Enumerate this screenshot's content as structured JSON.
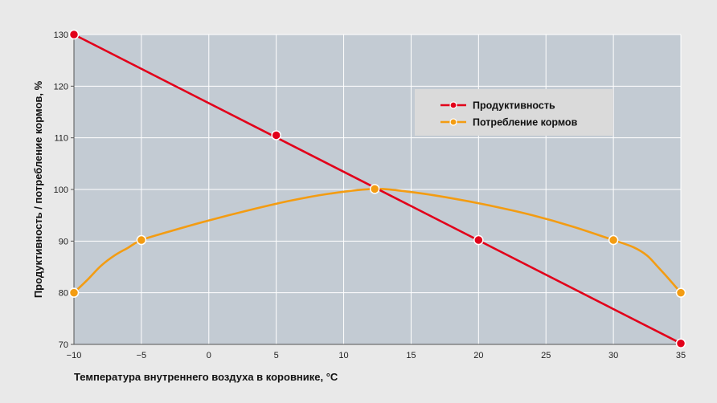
{
  "chart_data": {
    "type": "line",
    "xlabel": "Температура внутреннего воздуха в коровнике, °С",
    "ylabel": "Продуктивность / потребление кормов, %",
    "xlim": [
      -10,
      35
    ],
    "ylim": [
      70,
      130
    ],
    "x_ticks": [
      -10,
      -5,
      0,
      5,
      10,
      15,
      20,
      25,
      30,
      35
    ],
    "x_tick_labels": [
      "−10",
      "−5",
      "0",
      "5",
      "10",
      "15",
      "20",
      "25",
      "30",
      "35"
    ],
    "y_ticks": [
      70,
      80,
      90,
      100,
      110,
      120,
      130
    ],
    "y_tick_labels": [
      "70",
      "80",
      "90",
      "100",
      "110",
      "120",
      "130"
    ],
    "grid": true,
    "legend_position": "top-right",
    "series": [
      {
        "name": "Продуктивность",
        "color": "#e2001a",
        "points": [
          [
            -10,
            130
          ],
          [
            5,
            110.5
          ],
          [
            20,
            90.2
          ],
          [
            35,
            70.2
          ]
        ],
        "curve": [
          [
            -10,
            130
          ],
          [
            35,
            70.2
          ]
        ]
      },
      {
        "name": "Потребление кормов",
        "color": "#f39c12",
        "points": [
          [
            -10,
            80
          ],
          [
            -5,
            90.2
          ],
          [
            12.3,
            100.1
          ],
          [
            30,
            90.2
          ],
          [
            35,
            80
          ]
        ],
        "curve": [
          [
            -10,
            80
          ],
          [
            -9,
            82.5
          ],
          [
            -8,
            85.2
          ],
          [
            -7,
            87.2
          ],
          [
            -6,
            88.7
          ],
          [
            -5,
            90.2
          ],
          [
            -3,
            91.8
          ],
          [
            0,
            94
          ],
          [
            3,
            96
          ],
          [
            6,
            97.8
          ],
          [
            9,
            99.2
          ],
          [
            12.3,
            100.1
          ],
          [
            15,
            99.5
          ],
          [
            18,
            98.3
          ],
          [
            21,
            96.8
          ],
          [
            24,
            95
          ],
          [
            27,
            92.8
          ],
          [
            30,
            90.2
          ],
          [
            31.5,
            88.8
          ],
          [
            32.5,
            87.2
          ],
          [
            33.3,
            85
          ],
          [
            34,
            83
          ],
          [
            35,
            80
          ]
        ]
      }
    ]
  }
}
